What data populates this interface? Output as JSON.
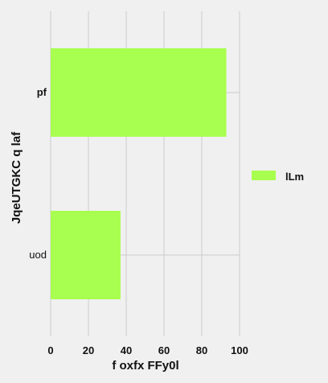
{
  "chart_data": {
    "type": "bar",
    "orientation": "horizontal",
    "categories": [
      "pf",
      "uod"
    ],
    "category_label_bold": [
      true,
      false
    ],
    "series": [
      {
        "name": "lLm",
        "values": [
          93,
          37
        ],
        "color": "#a8ff4f"
      }
    ],
    "xlabel": "f oxfx FFy0l",
    "ylabel": "JqeUTGKC q laf",
    "xlim": [
      0,
      100
    ],
    "xticks": [
      "0",
      "20",
      "40",
      "60",
      "80",
      "100"
    ],
    "grid": true,
    "legend_position": "right",
    "background": "#f0f0f0",
    "grid_color": "#cbcbcb"
  }
}
